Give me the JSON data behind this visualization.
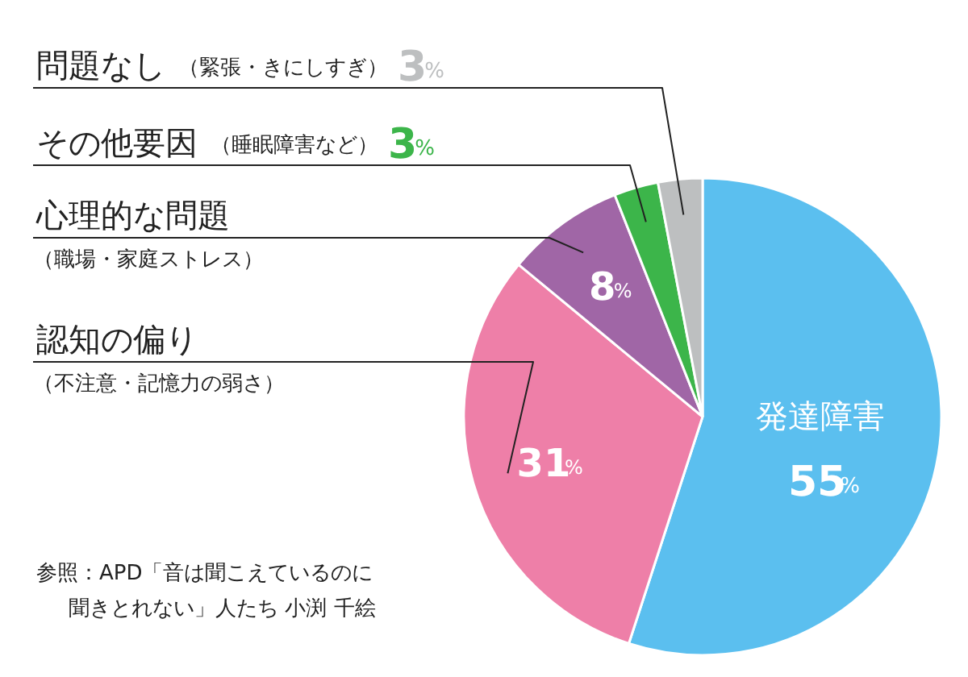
{
  "chart_data": {
    "type": "pie",
    "categories": [
      "発達障害",
      "認知の偏り",
      "心理的な問題",
      "その他要因",
      "問題なし"
    ],
    "values": [
      55,
      31,
      8,
      3,
      3
    ],
    "colors": [
      "#5bbfef",
      "#ee7fa8",
      "#a066a6",
      "#3cb54a",
      "#bdbfc0"
    ],
    "value_labels": [
      "55%",
      "31%",
      "8%",
      "3%",
      "3%"
    ],
    "annotations": [
      "（不注意・記憶力の弱さ）",
      "（職場・家庭ストレス）",
      "（睡眠障害など）",
      "（緊張・きにしすぎ）",
      "参照：APD「音は聞こえているのに",
      "聞きとれない」人たち 小渕 千絵"
    ]
  }
}
